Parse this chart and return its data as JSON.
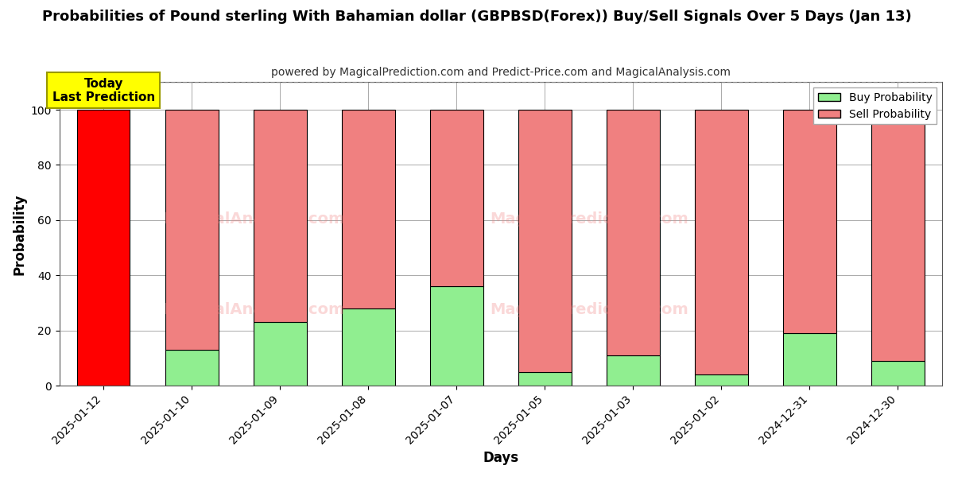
{
  "title": "Probabilities of Pound sterling With Bahamian dollar (GBPBSD(Forex)) Buy/Sell Signals Over 5 Days (Jan 13)",
  "subtitle": "powered by MagicalPrediction.com and Predict-Price.com and MagicalAnalysis.com",
  "xlabel": "Days",
  "ylabel": "Probability",
  "categories": [
    "2025-01-12",
    "2025-01-10",
    "2025-01-09",
    "2025-01-08",
    "2025-01-07",
    "2025-01-05",
    "2025-01-03",
    "2025-01-02",
    "2024-12-31",
    "2024-12-30"
  ],
  "buy_values": [
    0,
    13,
    23,
    28,
    36,
    5,
    11,
    4,
    19,
    9
  ],
  "sell_values": [
    100,
    87,
    77,
    72,
    64,
    95,
    89,
    96,
    81,
    91
  ],
  "buy_color_normal": "#90EE90",
  "buy_color_today": "#FF0000",
  "sell_color_normal": "#F08080",
  "sell_color_today": "#FF0000",
  "today_index": 0,
  "today_label": "Today\nLast Prediction",
  "today_label_bg": "#FFFF00",
  "ylim": [
    0,
    110
  ],
  "yticks": [
    0,
    20,
    40,
    60,
    80,
    100
  ],
  "dashed_line_y": 110,
  "legend_buy_label": "Buy Probability",
  "legend_sell_label": "Sell Probability",
  "bar_edge_color": "#000000",
  "bar_linewidth": 0.8,
  "grid_color": "#aaaaaa",
  "fig_width": 12,
  "fig_height": 6
}
